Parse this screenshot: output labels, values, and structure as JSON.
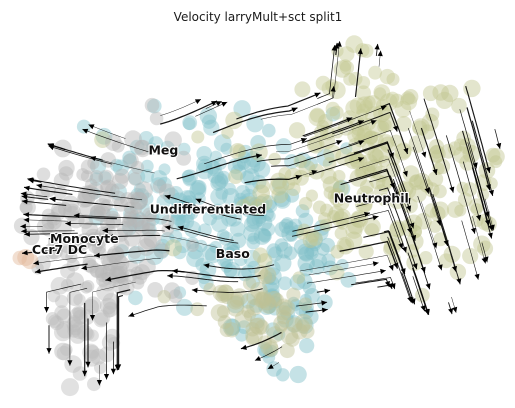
{
  "chart_data": {
    "type": "scatter",
    "title": "Velocity larryMult+sct split1",
    "xlabel": "",
    "ylabel": "",
    "axes_visible": false,
    "grid": false,
    "legend": "none",
    "overlay": "velocity streamlines with arrowheads",
    "cluster_labels": [
      {
        "name": "Meg",
        "x": 0.31,
        "y": 0.34
      },
      {
        "name": "Undifferentiated",
        "x": 0.4,
        "y": 0.5
      },
      {
        "name": "Neutrophil",
        "x": 0.73,
        "y": 0.47
      },
      {
        "name": "Monocyte",
        "x": 0.15,
        "y": 0.58
      },
      {
        "name": "Ccr7 DC",
        "x": 0.1,
        "y": 0.61
      },
      {
        "name": "Baso",
        "x": 0.45,
        "y": 0.62
      }
    ],
    "clusters": [
      {
        "name": "Undifferentiated",
        "color": "#84c3cb",
        "center": [
          0.38,
          0.48
        ],
        "spread": [
          0.1,
          0.12
        ],
        "count": 170
      },
      {
        "name": "Baso",
        "color": "#7fbec8",
        "center": [
          0.55,
          0.68
        ],
        "spread": [
          0.07,
          0.15
        ],
        "count": 110
      },
      {
        "name": "Neutrophil",
        "color": "#c2c690",
        "center": [
          0.75,
          0.42
        ],
        "spread": [
          0.14,
          0.13
        ],
        "count": 220
      },
      {
        "name": "Monocyte",
        "color": "#b5b5b5",
        "center": [
          0.18,
          0.55
        ],
        "spread": [
          0.08,
          0.12
        ],
        "count": 170
      },
      {
        "name": "Lower grey",
        "color": "#bdbdbd",
        "center": [
          0.14,
          0.82
        ],
        "spread": [
          0.04,
          0.07
        ],
        "count": 50
      },
      {
        "name": "Lower olive",
        "color": "#bfc294",
        "center": [
          0.5,
          0.78
        ],
        "spread": [
          0.06,
          0.06
        ],
        "count": 60
      },
      {
        "name": "Top olive",
        "color": "#c6c995",
        "center": [
          0.72,
          0.18
        ],
        "spread": [
          0.05,
          0.08
        ],
        "count": 45
      },
      {
        "name": "Ccr7 DC",
        "color": "#e3b89a",
        "center": [
          0.04,
          0.65
        ],
        "spread": [
          0.01,
          0.01
        ],
        "count": 3
      }
    ]
  }
}
